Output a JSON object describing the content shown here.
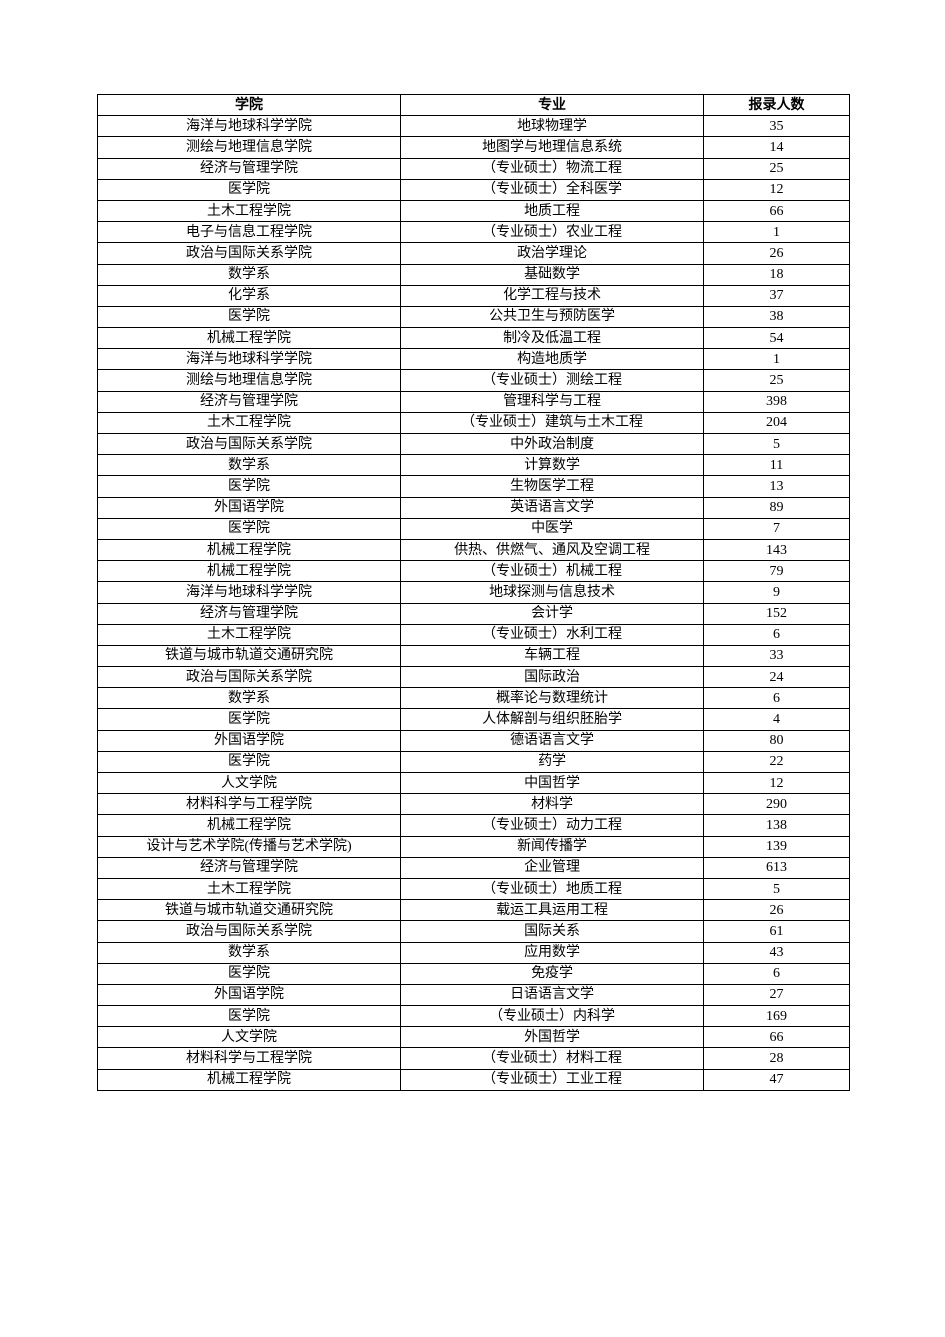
{
  "table": {
    "columns": [
      "学院",
      "专业",
      "报录人数"
    ],
    "rows": [
      [
        "海洋与地球科学学院",
        "地球物理学",
        "35"
      ],
      [
        "测绘与地理信息学院",
        "地图学与地理信息系统",
        "14"
      ],
      [
        "经济与管理学院",
        "（专业硕士）物流工程",
        "25"
      ],
      [
        "医学院",
        "（专业硕士）全科医学",
        "12"
      ],
      [
        "土木工程学院",
        "地质工程",
        "66"
      ],
      [
        "电子与信息工程学院",
        "（专业硕士）农业工程",
        "1"
      ],
      [
        "政治与国际关系学院",
        "政治学理论",
        "26"
      ],
      [
        "数学系",
        "基础数学",
        "18"
      ],
      [
        "化学系",
        "化学工程与技术",
        "37"
      ],
      [
        "医学院",
        "公共卫生与预防医学",
        "38"
      ],
      [
        "机械工程学院",
        "制冷及低温工程",
        "54"
      ],
      [
        "海洋与地球科学学院",
        "构造地质学",
        "1"
      ],
      [
        "测绘与地理信息学院",
        "（专业硕士）测绘工程",
        "25"
      ],
      [
        "经济与管理学院",
        "管理科学与工程",
        "398"
      ],
      [
        "土木工程学院",
        "（专业硕士）建筑与土木工程",
        "204"
      ],
      [
        "政治与国际关系学院",
        "中外政治制度",
        "5"
      ],
      [
        "数学系",
        "计算数学",
        "11"
      ],
      [
        "医学院",
        "生物医学工程",
        "13"
      ],
      [
        "外国语学院",
        "英语语言文学",
        "89"
      ],
      [
        "医学院",
        "中医学",
        "7"
      ],
      [
        "机械工程学院",
        "供热、供燃气、通风及空调工程",
        "143"
      ],
      [
        "机械工程学院",
        "（专业硕士）机械工程",
        "79"
      ],
      [
        "海洋与地球科学学院",
        "地球探测与信息技术",
        "9"
      ],
      [
        "经济与管理学院",
        "会计学",
        "152"
      ],
      [
        "土木工程学院",
        "（专业硕士）水利工程",
        "6"
      ],
      [
        "铁道与城市轨道交通研究院",
        "车辆工程",
        "33"
      ],
      [
        "政治与国际关系学院",
        "国际政治",
        "24"
      ],
      [
        "数学系",
        "概率论与数理统计",
        "6"
      ],
      [
        "医学院",
        "人体解剖与组织胚胎学",
        "4"
      ],
      [
        "外国语学院",
        "德语语言文学",
        "80"
      ],
      [
        "医学院",
        "药学",
        "22"
      ],
      [
        "人文学院",
        "中国哲学",
        "12"
      ],
      [
        "材料科学与工程学院",
        "材料学",
        "290"
      ],
      [
        "机械工程学院",
        "（专业硕士）动力工程",
        "138"
      ],
      [
        "设计与艺术学院(传播与艺术学院)",
        "新闻传播学",
        "139"
      ],
      [
        "经济与管理学院",
        "企业管理",
        "613"
      ],
      [
        "土木工程学院",
        "（专业硕士）地质工程",
        "5"
      ],
      [
        "铁道与城市轨道交通研究院",
        "载运工具运用工程",
        "26"
      ],
      [
        "政治与国际关系学院",
        "国际关系",
        "61"
      ],
      [
        "数学系",
        "应用数学",
        "43"
      ],
      [
        "医学院",
        "免疫学",
        "6"
      ],
      [
        "外国语学院",
        "日语语言文学",
        "27"
      ],
      [
        "医学院",
        "（专业硕士）内科学",
        "169"
      ],
      [
        "人文学院",
        "外国哲学",
        "66"
      ],
      [
        "材料科学与工程学院",
        "（专业硕士）材料工程",
        "28"
      ],
      [
        "机械工程学院",
        "（专业硕士）工业工程",
        "47"
      ]
    ]
  }
}
